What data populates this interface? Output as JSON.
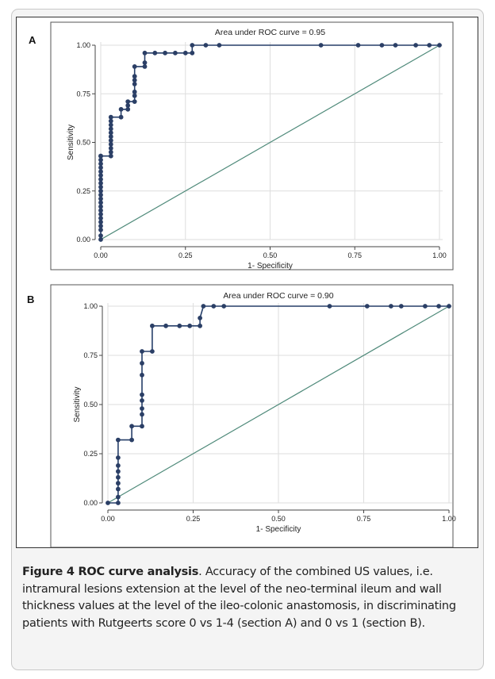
{
  "figure": {
    "label": "Figure 4",
    "title": "ROC curve analysis",
    "caption_text": ". Accuracy of the combined US values, i.e. intramural lesions extension at the level of the neo-terminal ileum and wall thickness values at the level of the ileo-colonic anastomosis, in discriminating patients with Rutgeerts score 0 vs 1-4 (section A) and 0 vs 1 (section B)."
  },
  "colors": {
    "roc_curve": "#263f69",
    "marker": "#2b3f66",
    "reference_line": "#4f8a7a",
    "grid": "#dedede",
    "axis": "#444444"
  },
  "chart_data": [
    {
      "type": "line",
      "panel_label": "A",
      "title": "Area under ROC curve = 0.95",
      "xlabel": "1- Specificity",
      "ylabel": "Sensitivity",
      "xlim": [
        0,
        1
      ],
      "ylim": [
        0,
        1
      ],
      "xticks": [
        "0.00",
        "0.25",
        "0.50",
        "0.75",
        "1.00"
      ],
      "yticks": [
        "0.00",
        "0.25",
        "0.50",
        "0.75",
        "1.00"
      ],
      "grid": true,
      "series": [
        {
          "type": "step",
          "x": [
            0,
            0,
            0,
            0,
            0,
            0,
            0,
            0,
            0,
            0,
            0,
            0,
            0,
            0,
            0,
            0,
            0,
            0,
            0,
            0,
            0,
            0,
            0,
            0.03,
            0.03,
            0.03,
            0.03,
            0.03,
            0.03,
            0.03,
            0.03,
            0.03,
            0.03,
            0.03,
            0.06,
            0.06,
            0.08,
            0.08,
            0.08,
            0.1,
            0.1,
            0.1,
            0.1,
            0.1,
            0.1,
            0.1,
            0.13,
            0.13,
            0.13,
            0.16,
            0.19,
            0.22,
            0.25,
            0.27,
            0.27,
            0.31,
            0.35,
            0.65,
            0.76,
            0.83,
            0.87,
            0.93,
            0.97,
            1.0
          ],
          "y": [
            0,
            0.02,
            0.05,
            0.07,
            0.09,
            0.11,
            0.13,
            0.15,
            0.17,
            0.19,
            0.21,
            0.23,
            0.25,
            0.27,
            0.29,
            0.31,
            0.33,
            0.35,
            0.37,
            0.39,
            0.41,
            0.43,
            0.43,
            0.43,
            0.45,
            0.47,
            0.49,
            0.51,
            0.53,
            0.55,
            0.57,
            0.59,
            0.61,
            0.63,
            0.63,
            0.67,
            0.67,
            0.69,
            0.71,
            0.71,
            0.74,
            0.76,
            0.8,
            0.82,
            0.84,
            0.89,
            0.89,
            0.91,
            0.96,
            0.96,
            0.96,
            0.96,
            0.96,
            0.96,
            1.0,
            1.0,
            1.0,
            1.0,
            1.0,
            1.0,
            1.0,
            1.0,
            1.0,
            1.0
          ]
        },
        {
          "type": "reference",
          "x": [
            0,
            1
          ],
          "y": [
            0,
            1
          ]
        }
      ]
    },
    {
      "type": "line",
      "panel_label": "B",
      "title": "Area under ROC curve = 0.90",
      "xlabel": "1- Specificity",
      "ylabel": "Sensitivity",
      "xlim": [
        0,
        1
      ],
      "ylim": [
        0,
        1
      ],
      "xticks": [
        "0.00",
        "0.25",
        "0.50",
        "0.75",
        "1.00"
      ],
      "yticks": [
        "0.00",
        "0.25",
        "0.50",
        "0.75",
        "1.00"
      ],
      "grid": true,
      "series": [
        {
          "type": "step",
          "x": [
            0,
            0.03,
            0.03,
            0.03,
            0.03,
            0.03,
            0.03,
            0.03,
            0.03,
            0.03,
            0.07,
            0.07,
            0.1,
            0.1,
            0.1,
            0.1,
            0.1,
            0.1,
            0.1,
            0.1,
            0.13,
            0.13,
            0.17,
            0.21,
            0.24,
            0.27,
            0.27,
            0.28,
            0.31,
            0.34,
            0.65,
            0.76,
            0.83,
            0.86,
            0.93,
            0.97,
            1.0
          ],
          "y": [
            0,
            0,
            0.03,
            0.07,
            0.1,
            0.13,
            0.16,
            0.19,
            0.23,
            0.32,
            0.32,
            0.39,
            0.39,
            0.45,
            0.48,
            0.52,
            0.55,
            0.65,
            0.71,
            0.77,
            0.77,
            0.9,
            0.9,
            0.9,
            0.9,
            0.9,
            0.94,
            1.0,
            1.0,
            1.0,
            1.0,
            1.0,
            1.0,
            1.0,
            1.0,
            1.0,
            1.0
          ]
        },
        {
          "type": "reference",
          "x": [
            0,
            1
          ],
          "y": [
            0,
            1
          ]
        }
      ]
    }
  ]
}
